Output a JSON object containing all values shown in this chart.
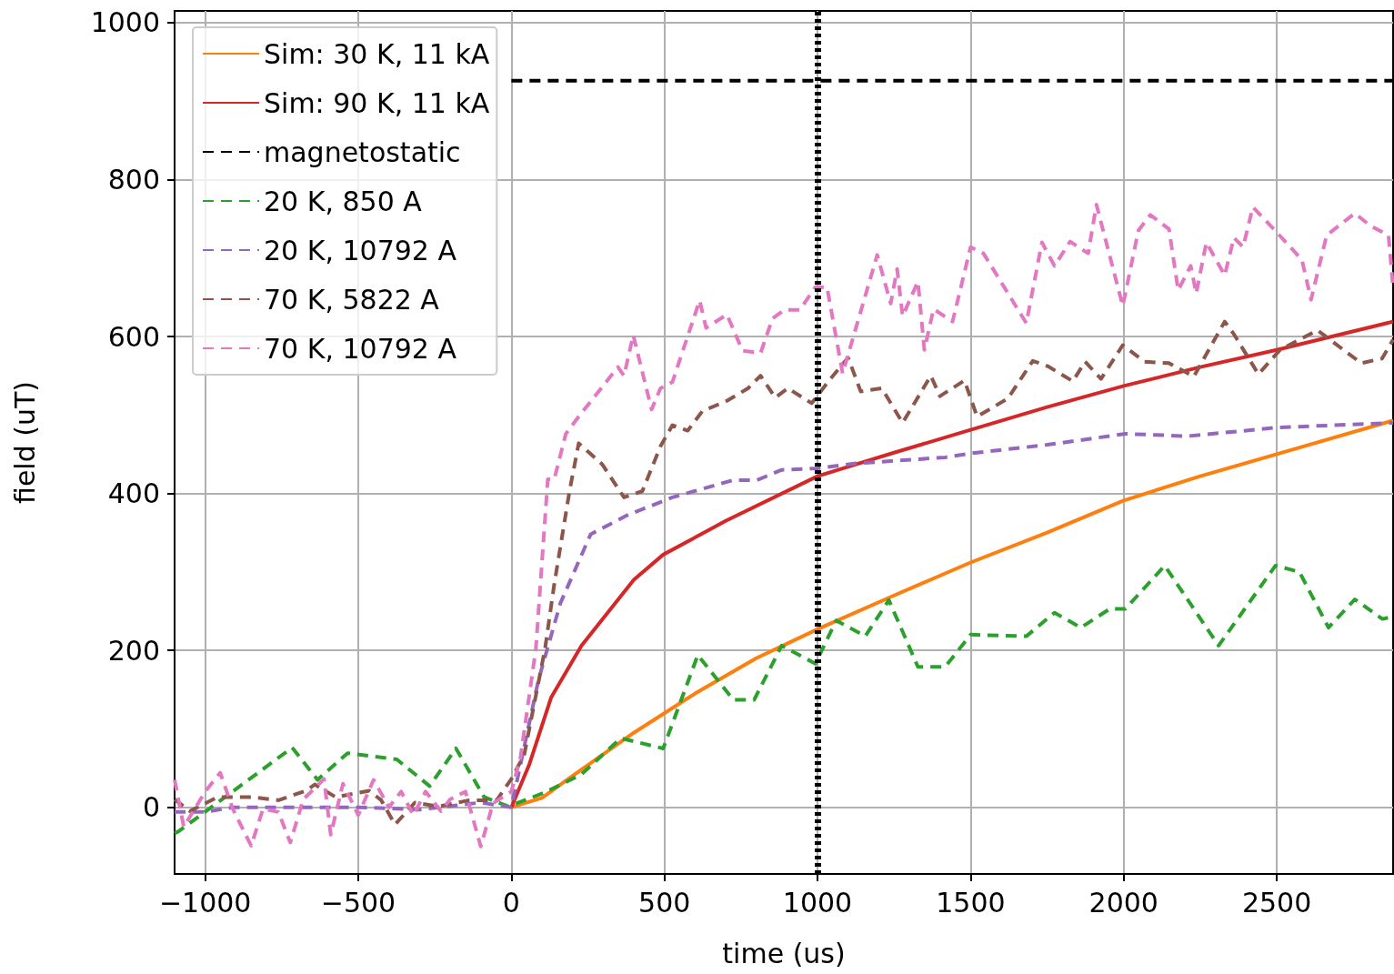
{
  "chart_data": {
    "type": "line",
    "xlabel": "time (us)",
    "ylabel": "field (uT)",
    "xlim": [
      -1100,
      2880
    ],
    "ylim": [
      -85,
      1015
    ],
    "xticks": [
      {
        "value": -1000,
        "label": "−1000"
      },
      {
        "value": -500,
        "label": "−500"
      },
      0,
      500,
      1000,
      1500,
      2000,
      2500
    ],
    "yticks": [
      0,
      200,
      400,
      600,
      800,
      1000
    ],
    "grid": true,
    "legend": "top left",
    "marker": "none",
    "ref_lines": [
      {
        "axis": "x",
        "value": 1000,
        "color": "#000000",
        "line_style": "dotted"
      }
    ],
    "series": [
      {
        "name": "Sim: 30 K, 11 kA",
        "color": "#ff7f0e",
        "line_style": "solid",
        "x": [
          0,
          100,
          200,
          400,
          600,
          800,
          1000,
          1250,
          1500,
          1750,
          2000,
          2250,
          2500,
          2880
        ],
        "values": [
          0,
          12,
          40,
          95,
          145,
          190,
          227,
          270,
          312,
          350,
          391,
          422,
          450,
          493
        ]
      },
      {
        "name": "Sim: 90 K, 11 kA",
        "color": "#d62728",
        "line_style": "solid",
        "x": [
          0,
          59,
          130,
          229,
          400,
          496,
          700,
          1000,
          1250,
          1500,
          1750,
          2000,
          2250,
          2500,
          2880
        ],
        "values": [
          0,
          55,
          140,
          206,
          290,
          322,
          365,
          422,
          452,
          481,
          510,
          537,
          561,
          583,
          619
        ]
      },
      {
        "name": "magnetostatic",
        "color": "#000000",
        "line_style": "dashed",
        "x": [
          0,
          2880
        ],
        "values": [
          926,
          926
        ]
      },
      {
        "name": "20 K, 850 A",
        "color": "#2ca02c",
        "line_style": "dashed",
        "x": [
          -1100,
          -1088,
          -716,
          -633,
          -535,
          -374,
          -267,
          -181,
          -89,
          -9,
          110,
          229,
          357,
          496,
          609,
          725,
          793,
          883,
          993,
          1061,
          1156,
          1233,
          1328,
          1417,
          1500,
          1682,
          1774,
          1860,
          1955,
          2006,
          2134,
          2310,
          2496,
          2574,
          2669,
          2755,
          2845,
          2880
        ],
        "values": [
          -33,
          -31,
          76,
          35,
          69,
          61,
          27,
          75,
          13,
          1,
          19,
          42,
          88,
          75,
          194,
          137,
          137,
          206,
          183,
          238,
          218,
          264,
          179,
          179,
          220,
          218,
          248,
          229,
          253,
          253,
          308,
          206,
          308,
          300,
          229,
          265,
          240,
          243
        ]
      },
      {
        "name": "20 K, 10792 A",
        "color": "#9467bd",
        "line_style": "dashed",
        "x": [
          -1100,
          -1000,
          -910,
          -500,
          -300,
          -100,
          0,
          89,
          160,
          259,
          377,
          526,
          725,
          802,
          883,
          1000,
          1120,
          1417,
          1500,
          1750,
          2006,
          2208,
          2502,
          2880
        ],
        "values": [
          -6,
          -6,
          0,
          0,
          -3,
          6,
          0,
          163,
          260,
          348,
          372,
          395,
          417,
          417,
          430,
          432,
          438,
          446,
          451,
          462,
          476,
          473,
          484,
          490
        ]
      },
      {
        "name": "70 K, 5822 A",
        "color": "#8c564b",
        "line_style": "dashed",
        "x": [
          -1100,
          -1050,
          -960,
          -850,
          -760,
          -672,
          -642,
          -574,
          -464,
          -425,
          -380,
          -315,
          -238,
          -137,
          -48,
          0,
          42,
          110,
          140,
          190,
          220,
          297,
          368,
          428,
          487,
          526,
          576,
          624,
          704,
          773,
          814,
          862,
          903,
          981,
          1040,
          1100,
          1141,
          1210,
          1278,
          1370,
          1400,
          1480,
          1521,
          1622,
          1703,
          1753,
          1834,
          1874,
          1926,
          1997,
          2068,
          2148,
          2229,
          2330,
          2360,
          2440,
          2511,
          2633,
          2776,
          2844,
          2880
        ],
        "values": [
          10,
          -5,
          13,
          13,
          9,
          21,
          29,
          13,
          21,
          9,
          -22,
          6,
          1,
          9,
          9,
          36,
          67,
          202,
          284,
          403,
          464,
          437,
          395,
          403,
          460,
          487,
          480,
          505,
          518,
          534,
          550,
          522,
          534,
          515,
          545,
          573,
          530,
          534,
          490,
          550,
          524,
          544,
          498,
          521,
          569,
          562,
          543,
          568,
          546,
          589,
          568,
          566,
          549,
          619,
          603,
          552,
          583,
          608,
          566,
          572,
          596
        ]
      },
      {
        "name": "70 K, 10792 A",
        "color": "#e377c2",
        "line_style": "dashed",
        "x": [
          -1100,
          -1070,
          -1000,
          -951,
          -910,
          -850,
          -811,
          -761,
          -722,
          -680,
          -612,
          -590,
          -550,
          -500,
          -450,
          -400,
          -360,
          -320,
          -280,
          -230,
          -200,
          -150,
          -100,
          -60,
          0,
          30,
          80,
          119,
          140,
          178,
          220,
          348,
          368,
          398,
          458,
          487,
          526,
          615,
          636,
          704,
          755,
          814,
          853,
          892,
          942,
          993,
          1031,
          1082,
          1195,
          1239,
          1260,
          1278,
          1328,
          1349,
          1379,
          1441,
          1500,
          1542,
          1682,
          1733,
          1774,
          1825,
          1884,
          1911,
          1997,
          2048,
          2087,
          2148,
          2178,
          2219,
          2237,
          2270,
          2330,
          2360,
          2390,
          2422,
          2490,
          2582,
          2612,
          2663,
          2755,
          2806,
          2865,
          2880
        ],
        "values": [
          35,
          -25,
          20,
          44,
          -2,
          -49,
          -2,
          -6,
          -45,
          10,
          36,
          -35,
          30,
          -10,
          35,
          0,
          20,
          -10,
          20,
          -5,
          10,
          20,
          -50,
          5,
          20,
          64,
          202,
          418,
          418,
          476,
          498,
          561,
          550,
          602,
          507,
          534,
          542,
          646,
          611,
          628,
          582,
          579,
          623,
          634,
          634,
          663,
          663,
          553,
          704,
          642,
          686,
          626,
          670,
          583,
          635,
          619,
          714,
          706,
          617,
          720,
          690,
          721,
          706,
          768,
          639,
          735,
          755,
          737,
          659,
          690,
          655,
          720,
          678,
          726,
          714,
          765,
          737,
          698,
          647,
          729,
          757,
          741,
          729,
          662
        ]
      }
    ]
  }
}
